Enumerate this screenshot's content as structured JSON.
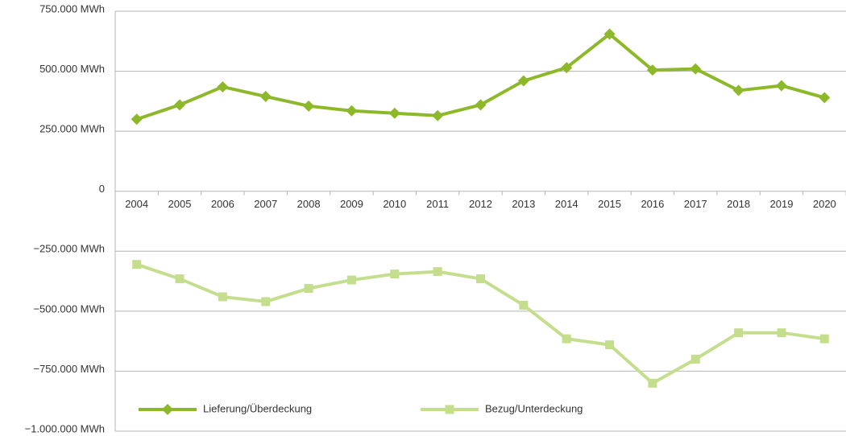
{
  "chart_data": {
    "type": "line",
    "categories": [
      "2004",
      "2005",
      "2006",
      "2007",
      "2008",
      "2009",
      "2010",
      "2011",
      "2012",
      "2013",
      "2014",
      "2015",
      "2016",
      "2017",
      "2018",
      "2019",
      "2020"
    ],
    "series": [
      {
        "name": "Lieferung/Überdeckung",
        "color": "#8cb82a",
        "marker": "diamond",
        "values": [
          300000,
          360000,
          435000,
          395000,
          355000,
          335000,
          325000,
          315000,
          360000,
          460000,
          515000,
          655000,
          505000,
          510000,
          420000,
          440000,
          390000
        ]
      },
      {
        "name": "Bezug/Unterdeckung",
        "color": "#c5de8e",
        "marker": "square",
        "values": [
          -305000,
          -365000,
          -440000,
          -460000,
          -405000,
          -370000,
          -345000,
          -335000,
          -365000,
          -475000,
          -615000,
          -640000,
          -800000,
          -700000,
          -590000,
          -590000,
          -615000
        ]
      }
    ],
    "ylim": [
      -1000000,
      750000
    ],
    "yticks": [
      {
        "value": -1000000,
        "label": "−1.000.000 MWh"
      },
      {
        "value": -750000,
        "label": "−750.000 MWh"
      },
      {
        "value": -500000,
        "label": "−500.000 MWh"
      },
      {
        "value": -250000,
        "label": "−250.000 MWh"
      },
      0,
      {
        "value": 250000,
        "label": "250.000 MWh"
      },
      {
        "value": 500000,
        "label": "500.000 MWh"
      },
      {
        "value": 750000,
        "label": "750.000 MWh"
      }
    ],
    "grid": true,
    "legend": "bottom"
  }
}
